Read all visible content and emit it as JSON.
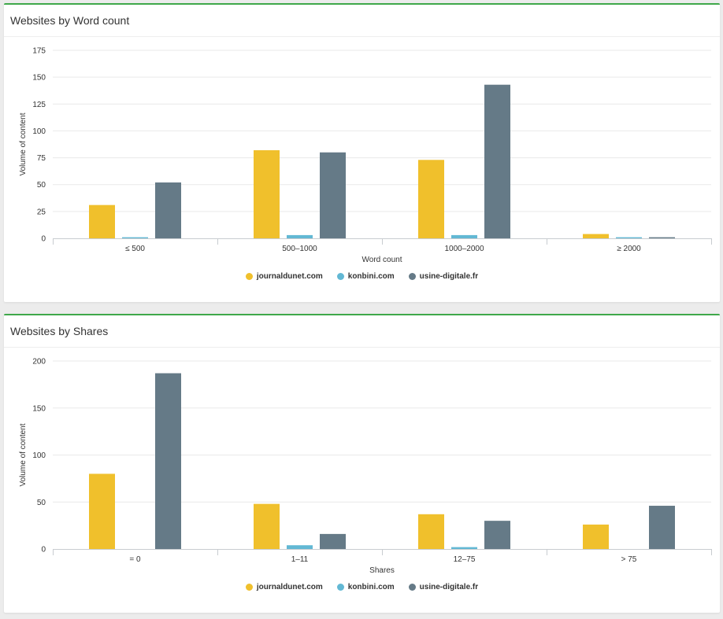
{
  "panels": [
    {
      "title": "Websites by Word count"
    },
    {
      "title": "Websites by Shares"
    }
  ],
  "colors": {
    "journaldunet.com": "#f0c02c",
    "konbini.com": "#62b8d4",
    "usine-digitale.fr": "#657a87",
    "panel_border": "#3fa84a"
  },
  "legend": [
    "journaldunet.com",
    "konbini.com",
    "usine-digitale.fr"
  ],
  "chart_data": [
    {
      "type": "bar",
      "title": "Websites by Word count",
      "xlabel": "Word count",
      "ylabel": "Volume of content",
      "categories": [
        "≤ 500",
        "500–1000",
        "1000–2000",
        "≥ 2000"
      ],
      "ylim": [
        0,
        175
      ],
      "yticks": [
        0,
        25,
        50,
        75,
        100,
        125,
        150,
        175
      ],
      "grid": true,
      "legend_position": "bottom",
      "series": [
        {
          "name": "journaldunet.com",
          "values": [
            31,
            82,
            73,
            4
          ]
        },
        {
          "name": "konbini.com",
          "values": [
            1,
            3,
            3,
            1
          ]
        },
        {
          "name": "usine-digitale.fr",
          "values": [
            52,
            80,
            143,
            1
          ]
        }
      ]
    },
    {
      "type": "bar",
      "title": "Websites by Shares",
      "xlabel": "Shares",
      "ylabel": "Volume of content",
      "categories": [
        "= 0",
        "1–11",
        "12–75",
        "> 75"
      ],
      "ylim": [
        0,
        200
      ],
      "yticks": [
        0,
        50,
        100,
        150,
        200
      ],
      "grid": true,
      "legend_position": "bottom",
      "series": [
        {
          "name": "journaldunet.com",
          "values": [
            80,
            48,
            37,
            26
          ]
        },
        {
          "name": "konbini.com",
          "values": [
            0,
            4,
            2,
            0
          ]
        },
        {
          "name": "usine-digitale.fr",
          "values": [
            187,
            16,
            30,
            46
          ]
        }
      ]
    }
  ]
}
